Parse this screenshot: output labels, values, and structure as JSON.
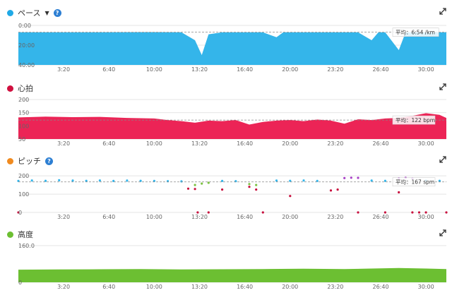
{
  "colors": {
    "pace": "#34b5ea",
    "heart": "#ec2456",
    "cadence_blue": "#34b5ea",
    "cadence_green": "#7cc242",
    "cadence_purple": "#a73fc6",
    "cadence_red": "#c8103e",
    "elevation": "#6cbf32",
    "pace_dot": "#1fa9e6",
    "heart_dot": "#d0103f",
    "cadence_dot": "#f08a1f",
    "elev_dot": "#6cbf32"
  },
  "x_ticks": [
    "3:20",
    "6:40",
    "10:00",
    "13:20",
    "16:40",
    "20:00",
    "23:20",
    "26:40",
    "30:00"
  ],
  "panels": [
    {
      "key": "pace",
      "title": "ペース",
      "has_dropdown": true,
      "has_help": true,
      "y_ticks": [
        "0:00",
        "20:00",
        "40:00"
      ],
      "avg_label": "平均：6:54 /km"
    },
    {
      "key": "heart",
      "title": "心拍",
      "has_dropdown": false,
      "has_help": false,
      "y_ticks": [
        "200",
        "150",
        "100",
        "50"
      ],
      "avg_label": "平均：122 bpm"
    },
    {
      "key": "cadence",
      "title": "ピッチ",
      "has_dropdown": false,
      "has_help": true,
      "y_ticks": [
        "200",
        "100",
        "0"
      ],
      "avg_label": "平均：167 spm"
    },
    {
      "key": "elevation",
      "title": "高度",
      "has_dropdown": false,
      "has_help": false,
      "y_ticks": [
        "160.0",
        "0"
      ],
      "avg_label": ""
    }
  ],
  "chart_data": [
    {
      "type": "area",
      "title": "ペース",
      "x_ticks": [
        "3:20",
        "6:40",
        "10:00",
        "13:20",
        "16:40",
        "20:00",
        "23:20",
        "26:40",
        "30:00"
      ],
      "y_ticks": [
        "0:00",
        "20:00",
        "40:00"
      ],
      "ylim_min": [
        0,
        40
      ],
      "y_inverted": true,
      "average": 6.9,
      "x_min": [
        0,
        5,
        10,
        12,
        13,
        13.5,
        14,
        15,
        18,
        19,
        19.5,
        20,
        22,
        25,
        26,
        26.5,
        27,
        28,
        28.5,
        29,
        30,
        31.5
      ],
      "values": [
        7,
        7,
        6.8,
        7,
        15,
        30,
        9,
        7,
        7,
        12,
        7,
        7,
        7,
        7,
        15,
        7,
        7,
        25,
        7,
        7,
        7,
        7
      ]
    },
    {
      "type": "area",
      "title": "心拍",
      "x_ticks": [
        "3:20",
        "6:40",
        "10:00",
        "13:20",
        "16:40",
        "20:00",
        "23:20",
        "26:40",
        "30:00"
      ],
      "y_ticks": [
        "200",
        "150",
        "100",
        "50"
      ],
      "ylim": [
        50,
        200
      ],
      "average": 122,
      "x_min": [
        0,
        2,
        4,
        6,
        8,
        10,
        11,
        12,
        13,
        14,
        15,
        16,
        17,
        18,
        19,
        20,
        21,
        22,
        23,
        24,
        25,
        26,
        27,
        28,
        29,
        30,
        31,
        31.5
      ],
      "values": [
        132,
        135,
        133,
        134,
        130,
        128,
        122,
        118,
        112,
        120,
        118,
        122,
        105,
        115,
        120,
        122,
        118,
        124,
        120,
        108,
        125,
        122,
        128,
        130,
        138,
        148,
        142,
        130
      ]
    },
    {
      "type": "scatter",
      "title": "ピッチ",
      "x_ticks": [
        "3:20",
        "6:40",
        "10:00",
        "13:20",
        "16:40",
        "20:00",
        "23:20",
        "26:40",
        "30:00"
      ],
      "y_ticks": [
        "200",
        "100",
        "0"
      ],
      "ylim": [
        0,
        220
      ],
      "average": 167,
      "series": [
        {
          "color_key": "cadence_blue",
          "x_min": [
            0,
            1,
            2,
            3,
            4,
            5,
            6,
            7,
            8,
            9,
            10,
            11,
            12,
            15,
            16,
            19,
            20,
            21,
            22,
            26,
            27,
            30,
            31
          ],
          "values": [
            172,
            175,
            173,
            176,
            174,
            173,
            175,
            172,
            174,
            173,
            172,
            171,
            170,
            172,
            171,
            174,
            173,
            175,
            172,
            174,
            173,
            175,
            173
          ]
        },
        {
          "color_key": "cadence_green",
          "x_min": [
            13,
            13.5,
            14,
            17,
            17.5
          ],
          "values": [
            150,
            158,
            162,
            155,
            150
          ]
        },
        {
          "color_key": "cadence_purple",
          "x_min": [
            24,
            24.5,
            25,
            28,
            28.5,
            29
          ],
          "values": [
            188,
            190,
            189,
            187,
            189,
            186
          ]
        },
        {
          "color_key": "cadence_red",
          "x_min": [
            0,
            12.5,
            13,
            13.2,
            14,
            15,
            17,
            17.5,
            18,
            20,
            23,
            23.5,
            25,
            27,
            28,
            29,
            29.5,
            30,
            31.5
          ],
          "values": [
            0,
            130,
            128,
            0,
            0,
            125,
            140,
            125,
            0,
            90,
            120,
            125,
            0,
            0,
            110,
            0,
            0,
            0,
            0
          ]
        }
      ]
    },
    {
      "type": "area",
      "title": "高度",
      "x_ticks": [
        "3:20",
        "6:40",
        "10:00",
        "13:20",
        "16:40",
        "20:00",
        "23:20",
        "26:40",
        "30:00"
      ],
      "y_ticks": [
        "160.0",
        "0"
      ],
      "ylim": [
        0,
        160
      ],
      "x_min": [
        0,
        3,
        6,
        9,
        12,
        15,
        18,
        21,
        24,
        26,
        28,
        30,
        31.5
      ],
      "values": [
        55,
        56,
        57,
        58,
        56,
        57,
        58,
        59,
        58,
        60,
        62,
        60,
        58
      ]
    }
  ]
}
